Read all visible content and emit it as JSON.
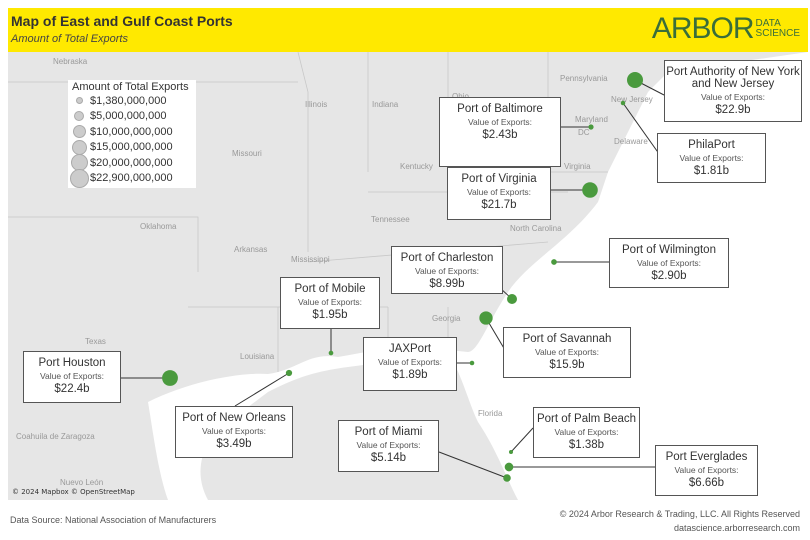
{
  "header": {
    "title": "Map of East and Gulf Coast Ports",
    "subtitle": "Amount of Total Exports",
    "logo": {
      "main": "ARBOR",
      "line1": "DATA",
      "line2": "SCIENCE"
    }
  },
  "colors": {
    "header": "#ffe900",
    "port_marker": "#4a9a3e",
    "logo": "#3a6e3a",
    "land": "#e6e6e6",
    "water": "#ffffff"
  },
  "legend": {
    "title": "Amount of Total Exports",
    "items": [
      "$1,380,000,000",
      "$5,000,000,000",
      "$10,000,000,000",
      "$15,000,000,000",
      "$20,000,000,000",
      "$22,900,000,000"
    ]
  },
  "state_labels": [
    "Nebraska",
    "Pennsylvania",
    "Ohio",
    "Illinois",
    "Indiana",
    "Missouri",
    "Kentucky",
    "Virginia",
    "Maryland",
    "DC",
    "Delaware",
    "New Jersey",
    "Tennessee",
    "North Carolina",
    "Oklahoma",
    "Arkansas",
    "Georgia",
    "Texas",
    "Louisiana",
    "Florida",
    "Coahuila de Zaragoza",
    "Nuevo León",
    "Mississippi"
  ],
  "value_label": "Value of Exports:",
  "ports": [
    {
      "name": "Port Authority of New York and New Jersey",
      "value": "$22.9b",
      "exports": 22900000000
    },
    {
      "name": "PhilaPort",
      "value": "$1.81b",
      "exports": 1810000000
    },
    {
      "name": "Port of Baltimore",
      "value": "$2.43b",
      "exports": 2430000000
    },
    {
      "name": "Port of Virginia",
      "value": "$21.7b",
      "exports": 21700000000
    },
    {
      "name": "Port of Wilmington",
      "value": "$2.90b",
      "exports": 2900000000
    },
    {
      "name": "Port of Charleston",
      "value": "$8.99b",
      "exports": 8990000000
    },
    {
      "name": "Port of Savannah",
      "value": "$15.9b",
      "exports": 15900000000
    },
    {
      "name": "Port of Mobile",
      "value": "$1.95b",
      "exports": 1950000000
    },
    {
      "name": "JAXPort",
      "value": "$1.89b",
      "exports": 1890000000
    },
    {
      "name": "Port Houston",
      "value": "$22.4b",
      "exports": 22400000000
    },
    {
      "name": "Port of New Orleans",
      "value": "$3.49b",
      "exports": 3490000000
    },
    {
      "name": "Port of Miami",
      "value": "$5.14b",
      "exports": 5140000000
    },
    {
      "name": "Port of Palm Beach",
      "value": "$1.38b",
      "exports": 1380000000
    },
    {
      "name": "Port Everglades",
      "value": "$6.66b",
      "exports": 6660000000
    }
  ],
  "map_attribution": "© 2024 Mapbox © OpenStreetMap",
  "footer": {
    "source": "Data Source: National Association of Manufacturers",
    "copyright": "© 2024 Arbor Research & Trading, LLC. All Rights Reserved",
    "website": "datascience.arborresearch.com"
  }
}
